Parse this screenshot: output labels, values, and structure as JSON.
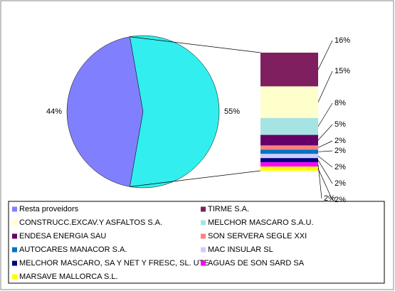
{
  "chart_data": [
    {
      "type": "pie",
      "categories": [
        "Resta proveidors",
        null
      ],
      "values": [
        44,
        55
      ],
      "value_labels": [
        "44%",
        "55%"
      ],
      "colors": [
        "#8080ff",
        "#33eeee"
      ]
    },
    {
      "type": "bar",
      "stacked": true,
      "categories": [
        "TIRME S.A.",
        "CONSTRUCC.EXCAV.Y ASFALTOS S.A.",
        "MELCHOR MASCARO S.A.U.",
        "ENDESA ENERGIA SAU",
        "SON SERVERA SEGLE XXI",
        "AUTOCARES MANACOR S.A.",
        "MAC INSULAR SL",
        "MELCHOR MASCARO, SA Y NET Y FRESC, SL. UTE",
        "AGUAS DE SON SARD SA",
        "MARSAVE MALLORCA S.L."
      ],
      "values": [
        16,
        15,
        8,
        5,
        2,
        2,
        2,
        2,
        2,
        2
      ],
      "value_labels": [
        "16%",
        "15%",
        "8%",
        "5%",
        "2%",
        "2%",
        "2%",
        "2%",
        "2%",
        "2%"
      ],
      "colors": [
        "#7f1f5f",
        "#ffffcc",
        "#a6e3e3",
        "#660066",
        "#ff8080",
        "#0073c0",
        "#ccccff",
        "#000080",
        "#ff00ff",
        "#ffff00"
      ]
    }
  ]
}
